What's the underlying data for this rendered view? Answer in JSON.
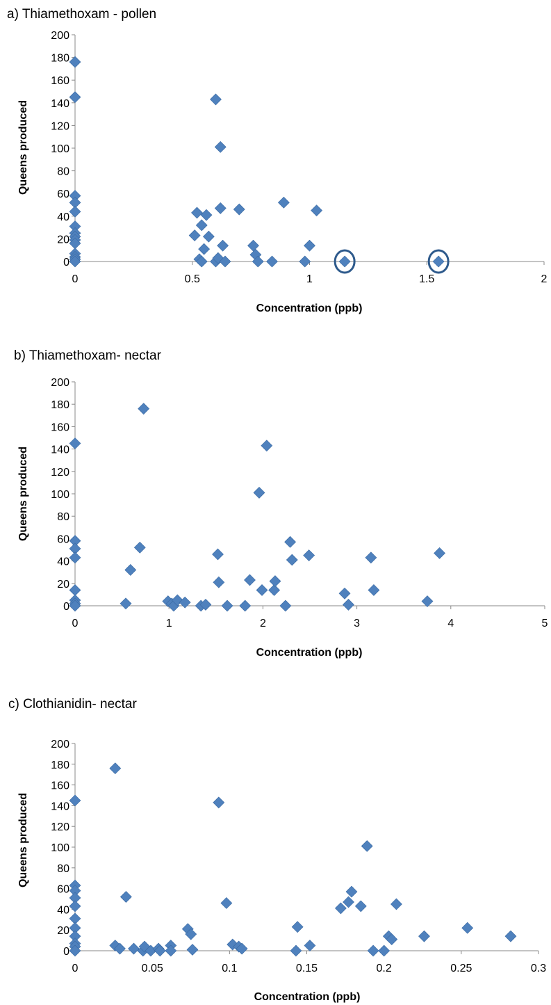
{
  "colors": {
    "marker": "#4f81bd",
    "marker_edge": "#3a6aa3",
    "highlight_ring": "#2e5a8c",
    "axis": "#888888"
  },
  "chart_data": [
    {
      "type": "scatter",
      "title": "a) Thiamethoxam - pollen",
      "xlabel": "Concentration (ppb)",
      "ylabel": "Queens produced",
      "xlim": [
        0,
        2
      ],
      "ylim": [
        0,
        200
      ],
      "xticks": [
        "0",
        "0.5",
        "1",
        "1.5",
        "2"
      ],
      "xtick_values": [
        0,
        0.5,
        1,
        1.5,
        2
      ],
      "yticks": [
        "0",
        "20",
        "40",
        "60",
        "80",
        "100",
        "120",
        "140",
        "160",
        "180",
        "200"
      ],
      "ytick_values": [
        0,
        20,
        40,
        60,
        80,
        100,
        120,
        140,
        160,
        180,
        200
      ],
      "grid": false,
      "marker": "diamond",
      "points": [
        [
          0,
          176
        ],
        [
          0,
          145
        ],
        [
          0,
          58
        ],
        [
          0,
          52
        ],
        [
          0,
          44
        ],
        [
          0,
          31
        ],
        [
          0,
          25
        ],
        [
          0,
          22
        ],
        [
          0,
          19
        ],
        [
          0,
          16
        ],
        [
          0,
          7
        ],
        [
          0,
          4
        ],
        [
          0,
          2
        ],
        [
          0,
          0
        ],
        [
          0.51,
          23
        ],
        [
          0.52,
          43
        ],
        [
          0.53,
          2
        ],
        [
          0.54,
          0
        ],
        [
          0.54,
          32
        ],
        [
          0.55,
          11
        ],
        [
          0.56,
          41
        ],
        [
          0.57,
          22
        ],
        [
          0.6,
          143
        ],
        [
          0.6,
          0
        ],
        [
          0.61,
          3
        ],
        [
          0.62,
          101
        ],
        [
          0.62,
          47
        ],
        [
          0.63,
          14
        ],
        [
          0.64,
          0
        ],
        [
          0.7,
          46
        ],
        [
          0.76,
          14
        ],
        [
          0.77,
          6
        ],
        [
          0.78,
          0
        ],
        [
          0.84,
          0
        ],
        [
          0.89,
          52
        ],
        [
          0.98,
          0
        ],
        [
          1.0,
          14
        ],
        [
          1.03,
          45
        ],
        [
          1.15,
          0
        ],
        [
          1.55,
          0
        ]
      ],
      "highlighted": [
        [
          1.15,
          0
        ],
        [
          1.55,
          0
        ]
      ]
    },
    {
      "type": "scatter",
      "title": "b) Thiamethoxam- nectar",
      "xlabel": "Concentration (ppb)",
      "ylabel": "Queens produced",
      "xlim": [
        0,
        5
      ],
      "ylim": [
        0,
        200
      ],
      "xticks": [
        "0",
        "1",
        "2",
        "3",
        "4",
        "5"
      ],
      "xtick_values": [
        0,
        1,
        2,
        3,
        4,
        5
      ],
      "yticks": [
        "0",
        "20",
        "40",
        "60",
        "80",
        "100",
        "120",
        "140",
        "160",
        "180",
        "200"
      ],
      "ytick_values": [
        0,
        20,
        40,
        60,
        80,
        100,
        120,
        140,
        160,
        180,
        200
      ],
      "grid": false,
      "marker": "diamond",
      "points": [
        [
          0,
          145
        ],
        [
          0,
          58
        ],
        [
          0,
          51
        ],
        [
          0,
          43
        ],
        [
          0,
          14
        ],
        [
          0,
          5
        ],
        [
          0,
          2
        ],
        [
          0,
          0
        ],
        [
          0.54,
          2
        ],
        [
          0.59,
          32
        ],
        [
          0.69,
          52
        ],
        [
          0.73,
          176
        ],
        [
          0.99,
          4
        ],
        [
          1.03,
          2
        ],
        [
          1.05,
          0
        ],
        [
          1.09,
          5
        ],
        [
          1.17,
          3
        ],
        [
          1.34,
          0
        ],
        [
          1.39,
          1
        ],
        [
          1.52,
          46
        ],
        [
          1.53,
          21
        ],
        [
          1.62,
          0
        ],
        [
          1.81,
          0
        ],
        [
          1.86,
          23
        ],
        [
          1.96,
          101
        ],
        [
          1.99,
          14
        ],
        [
          2.04,
          143
        ],
        [
          2.12,
          14
        ],
        [
          2.13,
          22
        ],
        [
          2.24,
          0
        ],
        [
          2.29,
          57
        ],
        [
          2.31,
          41
        ],
        [
          2.49,
          45
        ],
        [
          2.87,
          11
        ],
        [
          2.91,
          1
        ],
        [
          3.15,
          43
        ],
        [
          3.18,
          14
        ],
        [
          3.75,
          4
        ],
        [
          3.88,
          47
        ]
      ]
    },
    {
      "type": "scatter",
      "title": "c) Clothianidin- nectar",
      "xlabel": "Concentration (ppb)",
      "ylabel": "Queens produced",
      "xlim": [
        0,
        0.3
      ],
      "ylim": [
        0,
        200
      ],
      "xticks": [
        "0",
        "0.05",
        "0.1",
        "0.15",
        "0.2",
        "0.25",
        "0.3"
      ],
      "xtick_values": [
        0,
        0.05,
        0.1,
        0.15,
        0.2,
        0.25,
        0.3
      ],
      "yticks": [
        "0",
        "20",
        "40",
        "60",
        "80",
        "100",
        "120",
        "140",
        "160",
        "180",
        "200"
      ],
      "ytick_values": [
        0,
        20,
        40,
        60,
        80,
        100,
        120,
        140,
        160,
        180,
        200
      ],
      "grid": false,
      "marker": "diamond",
      "points": [
        [
          0,
          145
        ],
        [
          0,
          63
        ],
        [
          0,
          58
        ],
        [
          0,
          51
        ],
        [
          0,
          43
        ],
        [
          0,
          31
        ],
        [
          0,
          22
        ],
        [
          0,
          14
        ],
        [
          0,
          7
        ],
        [
          0,
          4
        ],
        [
          0,
          0
        ],
        [
          0.026,
          176
        ],
        [
          0.026,
          5
        ],
        [
          0.029,
          2
        ],
        [
          0.033,
          52
        ],
        [
          0.038,
          2
        ],
        [
          0.044,
          0
        ],
        [
          0.045,
          4
        ],
        [
          0.049,
          0
        ],
        [
          0.054,
          2
        ],
        [
          0.055,
          0
        ],
        [
          0.062,
          5
        ],
        [
          0.062,
          0
        ],
        [
          0.073,
          21
        ],
        [
          0.075,
          16
        ],
        [
          0.076,
          1
        ],
        [
          0.093,
          143
        ],
        [
          0.098,
          46
        ],
        [
          0.102,
          6
        ],
        [
          0.106,
          4
        ],
        [
          0.108,
          2
        ],
        [
          0.143,
          0
        ],
        [
          0.144,
          23
        ],
        [
          0.152,
          5
        ],
        [
          0.172,
          41
        ],
        [
          0.177,
          47
        ],
        [
          0.179,
          57
        ],
        [
          0.185,
          43
        ],
        [
          0.189,
          101
        ],
        [
          0.193,
          0
        ],
        [
          0.2,
          0
        ],
        [
          0.203,
          14
        ],
        [
          0.205,
          11
        ],
        [
          0.208,
          45
        ],
        [
          0.226,
          14
        ],
        [
          0.254,
          22
        ],
        [
          0.282,
          14
        ]
      ]
    }
  ]
}
